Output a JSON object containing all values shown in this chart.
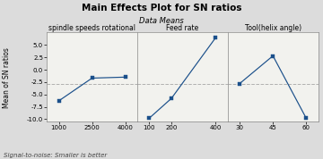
{
  "title": "Main Effects Plot for SN ratios",
  "subtitle": "Data Means",
  "ylabel": "Mean of SN ratios",
  "footnote": "Signal-to-noise: Smaller is better",
  "ylim": [
    -10.5,
    7.5
  ],
  "yticks": [
    -10.0,
    -7.5,
    -5.0,
    -2.5,
    0.0,
    2.5,
    5.0
  ],
  "grand_mean": -2.8,
  "panels": [
    {
      "label": "spindle speeds rotational",
      "x": [
        1000,
        2500,
        4000
      ],
      "y": [
        -6.3,
        -1.7,
        -1.5
      ],
      "xticks": [
        1000,
        2500,
        4000
      ]
    },
    {
      "label": "Feed rate",
      "x": [
        100,
        200,
        400
      ],
      "y": [
        -9.8,
        -5.8,
        6.5
      ],
      "xticks": [
        100,
        200,
        400
      ]
    },
    {
      "label": "Tool(helix angle)",
      "x": [
        30,
        45,
        60
      ],
      "y": [
        -2.8,
        2.8,
        -9.8
      ],
      "xticks": [
        30,
        45,
        60
      ]
    }
  ],
  "line_color": "#1a4f8a",
  "marker": "s",
  "marker_size": 3.0,
  "dashes_color": "#b0b0b0",
  "bg_color": "#dcdcdc",
  "plot_bg": "#f2f2ee",
  "title_fontsize": 7.5,
  "subtitle_fontsize": 6.0,
  "panel_label_fontsize": 5.5,
  "ylabel_fontsize": 5.5,
  "tick_fontsize": 5.0,
  "footnote_fontsize": 5.0
}
